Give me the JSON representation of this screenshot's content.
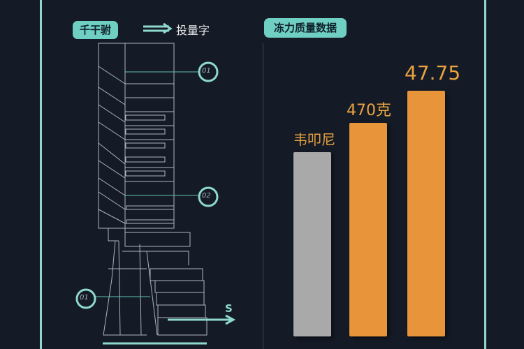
{
  "left_panel": {
    "tag": "千干驸",
    "arrow_icon": "arrow-right-icon",
    "caption": "投量字",
    "callouts": [
      "01",
      "02",
      "01"
    ],
    "arrow_label": "S"
  },
  "right_panel": {
    "tag": "冻力质量数据"
  },
  "colors": {
    "accent": "#6fcfc3",
    "frame": "#8fd8cf",
    "bar_gray": "#a9a9a9",
    "bar_orange": "#e8943a",
    "label": "#e9a23f",
    "background": "#141b27"
  },
  "chart_data": {
    "type": "bar",
    "title": "",
    "xlabel": "",
    "ylabel": "",
    "grid": false,
    "data_labels": [
      "韦叩尼",
      "470克",
      "47.75"
    ],
    "values_percent_of_max": [
      75,
      87,
      100
    ],
    "bar_colors": [
      "#a9a9a9",
      "#e8943a",
      "#e8943a"
    ]
  }
}
